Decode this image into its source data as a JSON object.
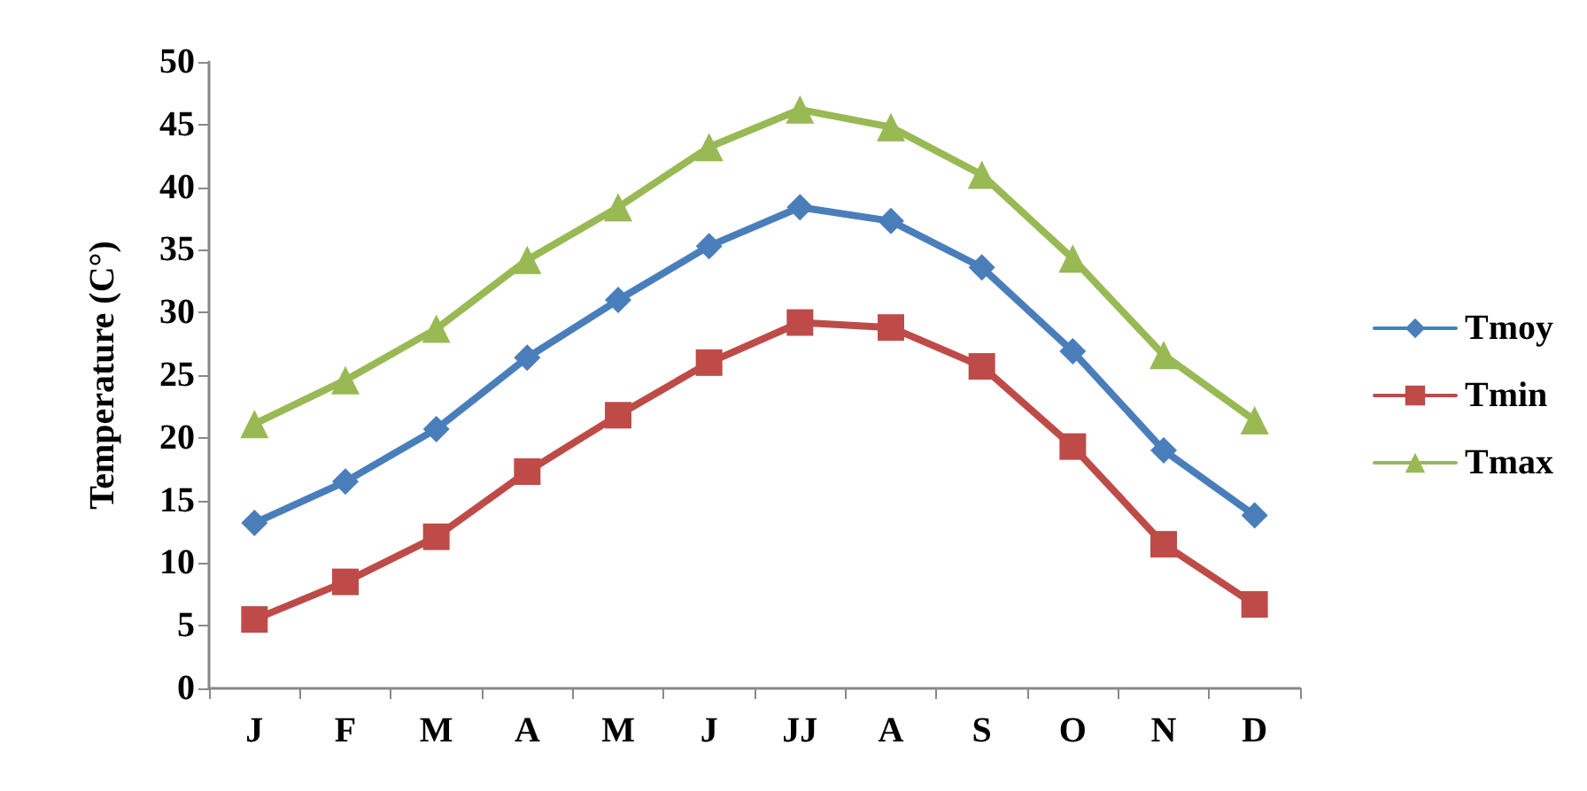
{
  "chart_data": {
    "type": "line",
    "ylabel": "Temperature (C°)",
    "categories": [
      "J",
      "F",
      "M",
      "A",
      "M",
      "J",
      "JJ",
      "A",
      "S",
      "O",
      "N",
      "D"
    ],
    "series": [
      {
        "name": "Tmoy",
        "color": "#4a7ebb",
        "marker": "diamond",
        "values": [
          13.2,
          16.5,
          20.7,
          26.4,
          31.0,
          35.3,
          38.4,
          37.3,
          33.6,
          26.9,
          19.0,
          13.8
        ]
      },
      {
        "name": "Tmin",
        "color": "#be4b48",
        "marker": "square",
        "values": [
          5.5,
          8.5,
          12.1,
          17.3,
          21.8,
          26.0,
          29.2,
          28.8,
          25.7,
          19.3,
          11.5,
          6.7
        ]
      },
      {
        "name": "Tmax",
        "color": "#98b954",
        "marker": "triangle",
        "values": [
          21.1,
          24.6,
          28.7,
          34.2,
          38.4,
          43.2,
          46.2,
          44.8,
          41.0,
          34.3,
          26.6,
          21.4
        ]
      }
    ],
    "ylim": [
      0,
      50
    ],
    "yticks": [
      0,
      5,
      10,
      15,
      20,
      25,
      30,
      35,
      40,
      45,
      50
    ],
    "grid": false,
    "legend": "right"
  }
}
